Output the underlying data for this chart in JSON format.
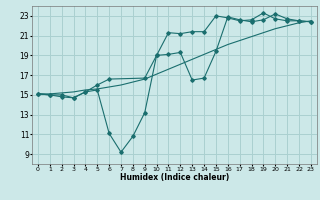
{
  "xlabel": "Humidex (Indice chaleur)",
  "background_color": "#cce8e8",
  "grid_color": "#aad0d0",
  "line_color": "#1a6e6e",
  "xlim": [
    -0.5,
    23.5
  ],
  "ylim": [
    8.0,
    24.0
  ],
  "xticks": [
    0,
    1,
    2,
    3,
    4,
    5,
    6,
    7,
    8,
    9,
    10,
    11,
    12,
    13,
    14,
    15,
    16,
    17,
    18,
    19,
    20,
    21,
    22,
    23
  ],
  "yticks": [
    9,
    11,
    13,
    15,
    17,
    19,
    21,
    23
  ],
  "line1_x": [
    0,
    1,
    2,
    3,
    4,
    5,
    6,
    7,
    8,
    9,
    10,
    11,
    12,
    13,
    14,
    15,
    16,
    17,
    18,
    19,
    20,
    21,
    22,
    23
  ],
  "line1_y": [
    15.1,
    15.0,
    14.8,
    14.7,
    15.3,
    15.5,
    11.1,
    9.2,
    10.8,
    13.2,
    19.0,
    21.3,
    21.2,
    21.4,
    21.4,
    23.0,
    22.8,
    22.5,
    22.6,
    23.3,
    22.7,
    22.5,
    22.5,
    22.4
  ],
  "line2_x": [
    0,
    1,
    2,
    3,
    4,
    5,
    6,
    7,
    8,
    9,
    10,
    11,
    12,
    13,
    14,
    15,
    16,
    17,
    18,
    19,
    20,
    21,
    22,
    23
  ],
  "line2_y": [
    15.1,
    15.1,
    15.2,
    15.3,
    15.5,
    15.6,
    15.8,
    16.0,
    16.3,
    16.6,
    17.1,
    17.6,
    18.1,
    18.6,
    19.1,
    19.6,
    20.1,
    20.5,
    20.9,
    21.3,
    21.7,
    22.0,
    22.3,
    22.5
  ],
  "line3_x": [
    0,
    1,
    2,
    3,
    4,
    5,
    6,
    9,
    10,
    11,
    12,
    13,
    14,
    15,
    16,
    17,
    18,
    19,
    20,
    21,
    22,
    23
  ],
  "line3_y": [
    15.1,
    15.0,
    15.0,
    14.7,
    15.3,
    16.0,
    16.6,
    16.7,
    19.0,
    19.1,
    19.3,
    16.5,
    16.7,
    19.4,
    22.9,
    22.6,
    22.4,
    22.6,
    23.2,
    22.7,
    22.5,
    22.4
  ]
}
